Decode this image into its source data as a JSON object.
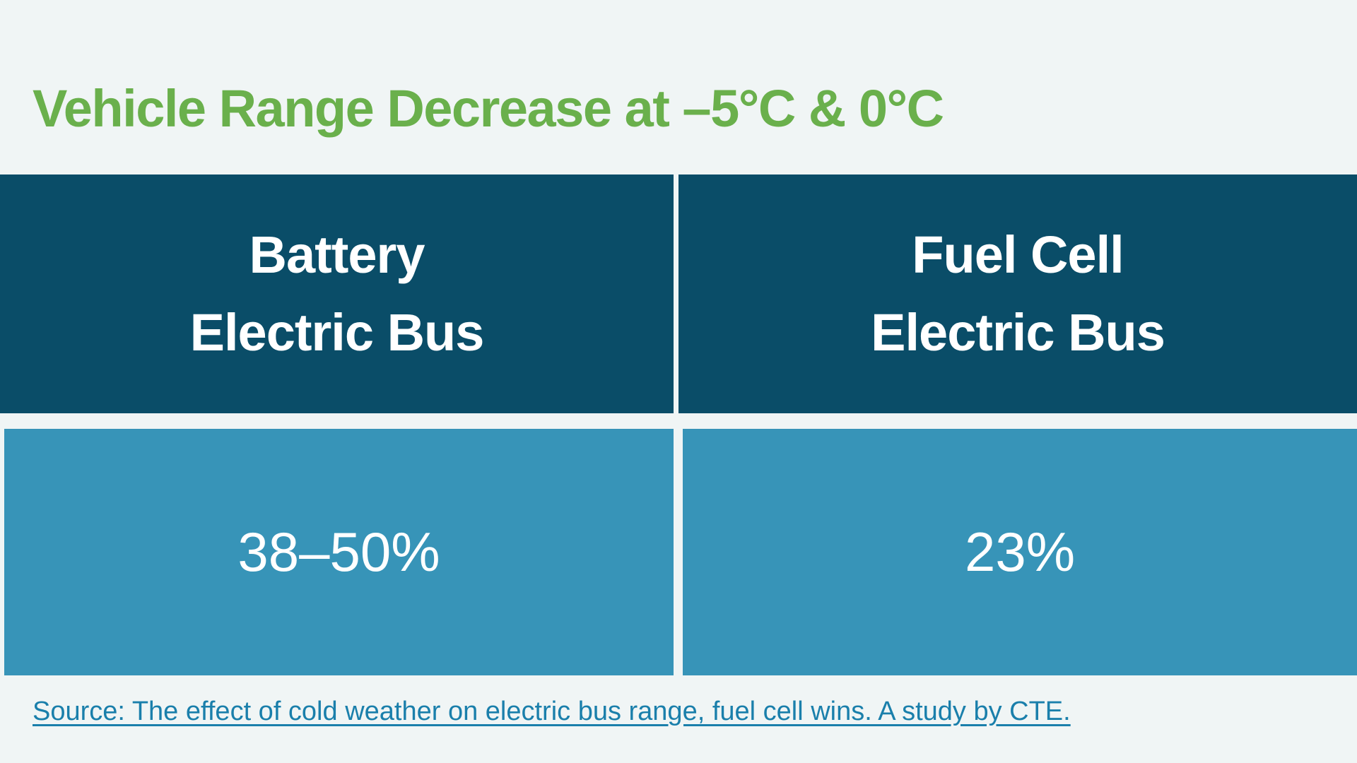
{
  "chart_data": {
    "type": "table",
    "title": "Vehicle Range Decrease at –5°C & 0°C",
    "columns": [
      {
        "header_line1": "Battery",
        "header_line2": "Electric Bus",
        "value": "38–50%"
      },
      {
        "header_line1": "Fuel Cell",
        "header_line2": "Electric Bus",
        "value": "23%"
      }
    ],
    "source": "Source: The effect of cold weather on electric bus range, fuel cell wins. A study by CTE."
  },
  "colors": {
    "title": "#6ab04c",
    "header_bg": "#0a4d68",
    "value_bg": "#3794b8",
    "source_link": "#1a7fab",
    "background": "#f0f5f5"
  }
}
